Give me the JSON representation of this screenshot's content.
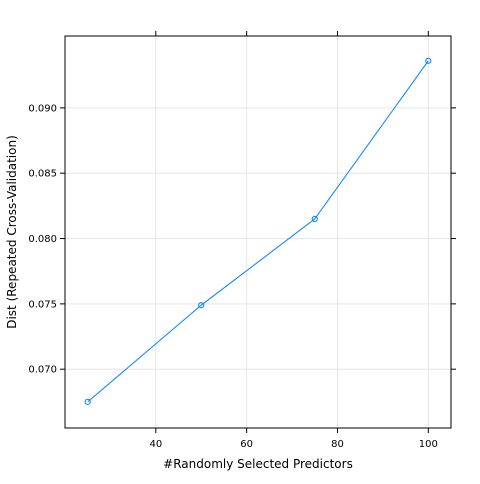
{
  "chart_data": {
    "type": "line",
    "title": "",
    "xlabel": "#Randomly Selected Predictors",
    "ylabel": "Dist (Repeated Cross-Validation)",
    "x": [
      25,
      50,
      75,
      100
    ],
    "series": [
      {
        "values": [
          0.0675,
          0.0749,
          0.0815,
          0.0936
        ],
        "color": "#0080ff"
      }
    ],
    "xlim": [
      20,
      105
    ],
    "ylim": [
      0.0655,
      0.0955
    ],
    "xticks": [
      40,
      60,
      80,
      100
    ],
    "yticks": [
      0.07,
      0.075,
      0.08,
      0.085,
      0.09
    ],
    "ytick_labels": [
      "0.070",
      "0.075",
      "0.080",
      "0.085",
      "0.090"
    ],
    "grid": true,
    "grid_color": "#e6e6e6",
    "marker": "open-circle"
  }
}
